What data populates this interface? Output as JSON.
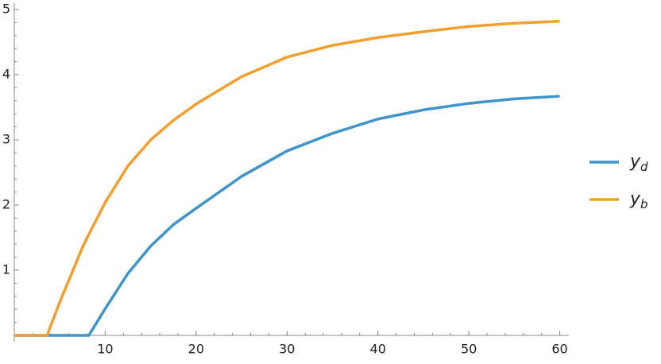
{
  "chart_data": {
    "type": "line",
    "x": [
      0,
      3.6,
      5,
      7.5,
      8.2,
      10,
      12.5,
      15,
      17.5,
      20,
      25,
      30,
      35,
      40,
      45,
      50,
      55,
      60
    ],
    "series": [
      {
        "name": "yd",
        "color": "#3f94c8",
        "values": [
          0,
          0,
          0,
          0,
          0,
          0.41,
          0.95,
          1.37,
          1.7,
          1.95,
          2.44,
          2.83,
          3.1,
          3.32,
          3.46,
          3.56,
          3.63,
          3.67
        ]
      },
      {
        "name": "yb",
        "color": "#f0a030",
        "values": [
          0,
          0,
          0.51,
          1.35,
          1.55,
          2.04,
          2.6,
          3.0,
          3.3,
          3.55,
          3.97,
          4.27,
          4.45,
          4.57,
          4.66,
          4.74,
          4.79,
          4.82
        ]
      }
    ],
    "xlim": [
      0,
      61
    ],
    "ylim": [
      -0.1,
      5.1
    ],
    "xticks": [
      10,
      20,
      30,
      40,
      50,
      60
    ],
    "yticks": [
      1,
      2,
      3,
      4,
      5
    ],
    "legend": "right"
  }
}
